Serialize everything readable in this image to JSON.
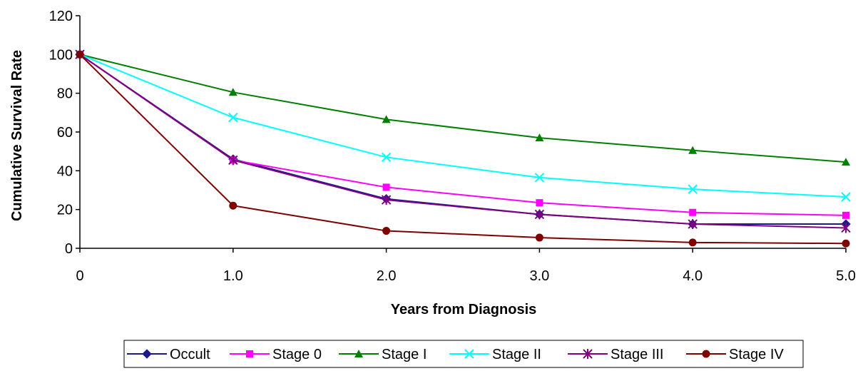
{
  "chart_data": {
    "type": "line",
    "title": "",
    "xlabel": "Years from Diagnosis",
    "ylabel": "Cumulative Survival Rate",
    "x": [
      0,
      1,
      2,
      3,
      4,
      5
    ],
    "xtick_labels": [
      "0",
      "1.0",
      "2.0",
      "3.0",
      "4.0",
      "5.0"
    ],
    "ylim": [
      0,
      120
    ],
    "yticks": [
      0,
      20,
      40,
      60,
      80,
      100,
      120
    ],
    "grid": false,
    "legend_position": "bottom",
    "series": [
      {
        "name": "Occult",
        "color": "#1a1a8c",
        "marker": "diamond",
        "values": [
          100,
          46,
          25.5,
          17.5,
          12.5,
          12.5
        ]
      },
      {
        "name": "Stage 0",
        "color": "#ff00ff",
        "marker": "square",
        "values": [
          100,
          45.5,
          31.5,
          23.5,
          18.5,
          17
        ]
      },
      {
        "name": "Stage I",
        "color": "#008000",
        "marker": "triangle",
        "values": [
          100,
          80.5,
          66.5,
          57,
          50.5,
          44.5
        ]
      },
      {
        "name": "Stage II",
        "color": "#00ffff",
        "marker": "x",
        "values": [
          100,
          67.5,
          47,
          36.5,
          30.5,
          26.5
        ]
      },
      {
        "name": "Stage III",
        "color": "#800080",
        "marker": "asterisk",
        "values": [
          100,
          45.5,
          25,
          17.5,
          12.5,
          10.5
        ]
      },
      {
        "name": "Stage IV",
        "color": "#800000",
        "marker": "circle",
        "values": [
          100,
          22,
          9,
          5.5,
          3,
          2.5
        ]
      }
    ]
  }
}
